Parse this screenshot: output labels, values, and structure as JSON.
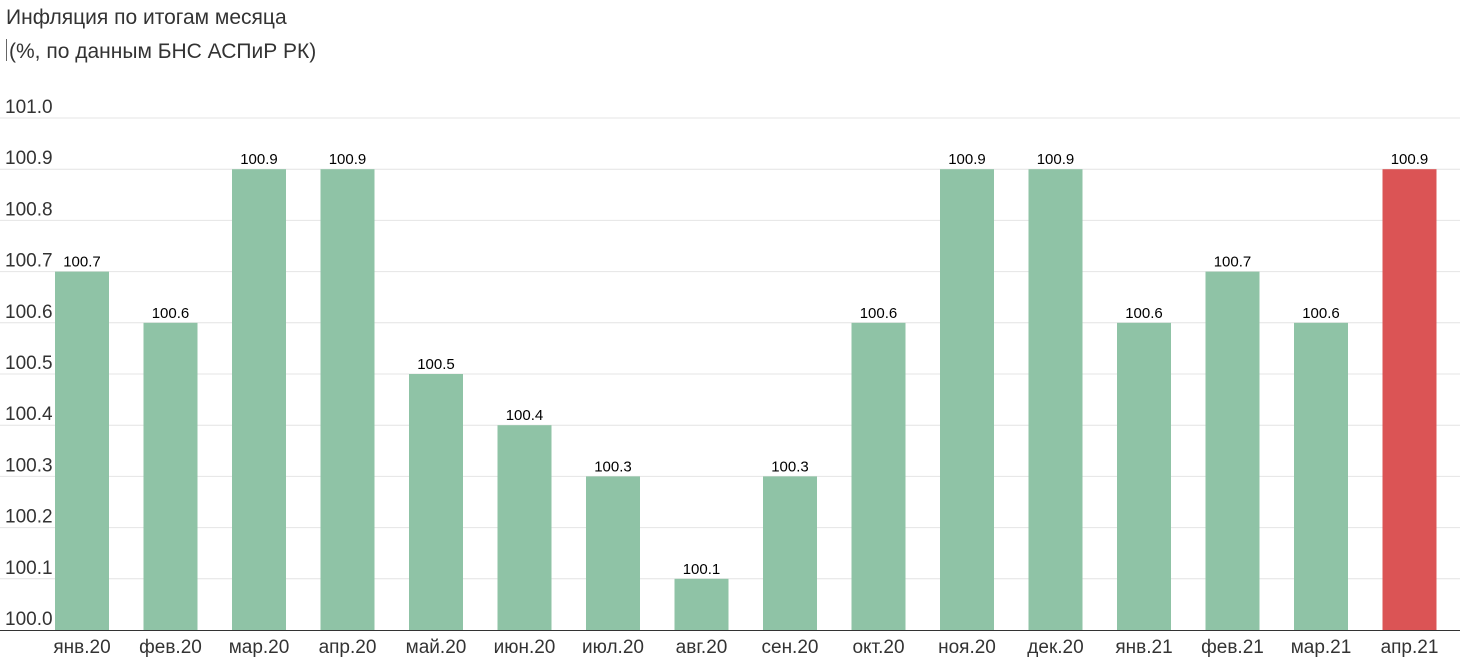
{
  "chart_data": {
    "type": "bar",
    "title": "Инфляция по итогам месяца",
    "subtitle": "(%, по данным БНС АСПиР РК)",
    "categories": [
      "янв.20",
      "фев.20",
      "мар.20",
      "апр.20",
      "май.20",
      "июн.20",
      "июл.20",
      "авг.20",
      "сен.20",
      "окт.20",
      "ноя.20",
      "дек.20",
      "янв.21",
      "фев.21",
      "мар.21",
      "апр.21"
    ],
    "values": [
      100.7,
      100.6,
      100.9,
      100.9,
      100.5,
      100.4,
      100.3,
      100.1,
      100.3,
      100.6,
      100.9,
      100.9,
      100.6,
      100.7,
      100.6,
      100.9
    ],
    "data_labels": [
      "100.7",
      "100.6",
      "100.9",
      "100.9",
      "100.5",
      "100.4",
      "100.3",
      "100.1",
      "100.3",
      "100.6",
      "100.9",
      "100.9",
      "100.6",
      "100.7",
      "100.6",
      "100.9"
    ],
    "y_ticks": [
      "100.0",
      "100.1",
      "100.2",
      "100.3",
      "100.4",
      "100.5",
      "100.6",
      "100.7",
      "100.8",
      "100.9",
      "101.0"
    ],
    "ylim": [
      100.0,
      101.0
    ],
    "grid": true,
    "legend": "none",
    "colors": {
      "bar": "#8fc3a6",
      "highlight": "#db5455",
      "gridline": "#e4e4e4",
      "baseline": "#333333"
    },
    "highlight_index": 15
  }
}
